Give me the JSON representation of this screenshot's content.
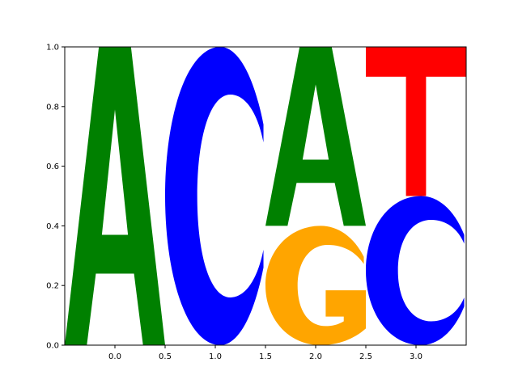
{
  "chart_data": {
    "type": "sequence-logo",
    "title": "",
    "xlabel": "",
    "ylabel": "",
    "xlim": [
      -0.5,
      3.5
    ],
    "ylim": [
      0,
      1
    ],
    "x_ticks": [
      0.0,
      0.5,
      1.0,
      1.5,
      2.0,
      2.5,
      3.0
    ],
    "x_tick_labels": [
      "0.0",
      "0.5",
      "1.0",
      "1.5",
      "2.0",
      "2.5",
      "3.0"
    ],
    "y_ticks": [
      0.0,
      0.2,
      0.4,
      0.6,
      0.8,
      1.0
    ],
    "y_tick_labels": [
      "0.0",
      "0.2",
      "0.4",
      "0.6",
      "0.8",
      "1.0"
    ],
    "grid": false,
    "colors": {
      "A": "#008000",
      "C": "#0000ff",
      "G": "#ffa500",
      "T": "#ff0000"
    },
    "positions": [
      {
        "x": 0,
        "letters": [
          {
            "letter": "A",
            "bottom": 0.0,
            "height": 1.0
          }
        ]
      },
      {
        "x": 1,
        "letters": [
          {
            "letter": "C",
            "bottom": 0.0,
            "height": 1.0
          }
        ]
      },
      {
        "x": 2,
        "letters": [
          {
            "letter": "G",
            "bottom": 0.0,
            "height": 0.4
          },
          {
            "letter": "A",
            "bottom": 0.4,
            "height": 0.6
          }
        ]
      },
      {
        "x": 3,
        "letters": [
          {
            "letter": "C",
            "bottom": 0.0,
            "height": 0.5
          },
          {
            "letter": "T",
            "bottom": 0.5,
            "height": 0.5
          }
        ]
      }
    ]
  }
}
